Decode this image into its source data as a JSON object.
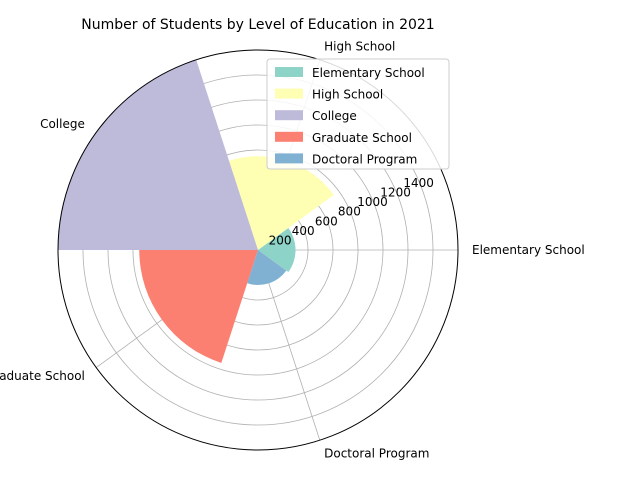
{
  "chart_data": {
    "type": "polar-bar",
    "title": "Number of Students by Level of Education in 2021",
    "categories": [
      "Elementary School",
      "High School",
      "College",
      "Graduate School",
      "Doctoral Program"
    ],
    "values": [
      300,
      750,
      1600,
      950,
      280
    ],
    "colors": [
      "#8dd3c7",
      "#ffffb3",
      "#bebada",
      "#fb8072",
      "#80b1d3"
    ],
    "radial_ticks": [
      200,
      400,
      600,
      800,
      1000,
      1200,
      1400
    ],
    "rmax": 1600,
    "grid": true,
    "legend_position": "top-right",
    "legend": [
      "Elementary School",
      "High School",
      "College",
      "Graduate School",
      "Doctoral Program"
    ]
  }
}
